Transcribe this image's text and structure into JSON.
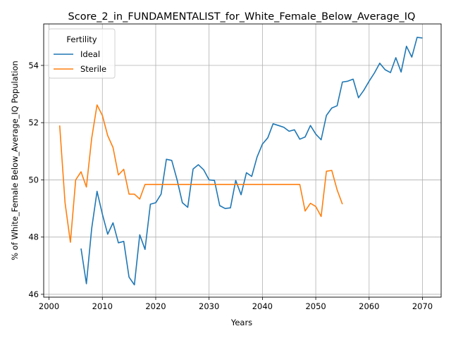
{
  "chart_data": {
    "type": "line",
    "title": "Score_2_in_FUNDAMENTALIST_for_White_Female_Below_Average_IQ",
    "xlabel": "Years",
    "ylabel": "% of White_Female Below_Average_IQ Population",
    "xlim": [
      1999,
      2073.5
    ],
    "ylim": [
      45.9,
      55.45
    ],
    "xticks": [
      2000,
      2010,
      2020,
      2030,
      2040,
      2050,
      2060,
      2070
    ],
    "yticks": [
      46,
      48,
      50,
      52,
      54
    ],
    "grid": true,
    "legend": {
      "title": "Fertility",
      "placement": "upper-left"
    },
    "series": [
      {
        "name": "Ideal",
        "color": "#1f77b4",
        "x": [
          2006,
          2007,
          2008,
          2009,
          2010,
          2011,
          2012,
          2013,
          2014,
          2015,
          2016,
          2017,
          2018,
          2019,
          2020,
          2021,
          2022,
          2023,
          2024,
          2025,
          2026,
          2027,
          2028,
          2029,
          2030,
          2031,
          2032,
          2033,
          2034,
          2035,
          2036,
          2037,
          2038,
          2039,
          2040,
          2041,
          2042,
          2043,
          2044,
          2045,
          2046,
          2047,
          2048,
          2049,
          2050,
          2051,
          2052,
          2053,
          2054,
          2055,
          2056,
          2057,
          2058,
          2059,
          2060,
          2061,
          2062,
          2063,
          2064,
          2065,
          2066,
          2067,
          2068,
          2069,
          2070
        ],
        "y": [
          47.6,
          46.37,
          48.3,
          49.6,
          48.8,
          48.1,
          48.5,
          47.8,
          47.85,
          46.6,
          46.33,
          48.08,
          47.57,
          49.15,
          49.2,
          49.5,
          50.72,
          50.68,
          50.0,
          49.2,
          49.04,
          50.38,
          50.53,
          50.35,
          50.0,
          49.98,
          49.1,
          49.0,
          49.02,
          49.98,
          49.48,
          50.25,
          50.12,
          50.8,
          51.25,
          51.47,
          51.96,
          51.9,
          51.84,
          51.7,
          51.75,
          51.42,
          51.5,
          51.9,
          51.6,
          51.4,
          52.25,
          52.51,
          52.59,
          53.42,
          53.45,
          53.52,
          52.87,
          53.13,
          53.45,
          53.74,
          54.08,
          53.85,
          53.75,
          54.27,
          53.77,
          54.67,
          54.29,
          54.98,
          54.96
        ]
      },
      {
        "name": "Sterile",
        "color": "#ff7f0e",
        "x": [
          2002,
          2003,
          2004,
          2005,
          2006,
          2007,
          2008,
          2009,
          2010,
          2011,
          2012,
          2013,
          2014,
          2015,
          2016,
          2017,
          2018,
          2019,
          2020,
          2021,
          2022,
          2023,
          2024,
          2025,
          2026,
          2027,
          2028,
          2029,
          2030,
          2031,
          2032,
          2033,
          2034,
          2035,
          2036,
          2037,
          2038,
          2039,
          2040,
          2041,
          2042,
          2043,
          2044,
          2045,
          2046,
          2047,
          2048,
          2049,
          2050,
          2051,
          2052,
          2053,
          2054,
          2055
        ],
        "y": [
          51.9,
          49.2,
          47.82,
          50.0,
          50.28,
          49.75,
          51.45,
          52.62,
          52.25,
          51.55,
          51.13,
          50.17,
          50.37,
          49.5,
          49.5,
          49.33,
          49.84,
          49.84,
          49.84,
          49.84,
          49.84,
          49.84,
          49.84,
          49.84,
          49.84,
          49.84,
          49.84,
          49.84,
          49.84,
          49.84,
          49.84,
          49.84,
          49.84,
          49.84,
          49.84,
          49.84,
          49.84,
          49.84,
          49.84,
          49.84,
          49.84,
          49.84,
          49.84,
          49.84,
          49.84,
          49.84,
          48.91,
          49.18,
          49.07,
          48.72,
          50.3,
          50.33,
          49.65,
          49.15
        ]
      }
    ]
  }
}
